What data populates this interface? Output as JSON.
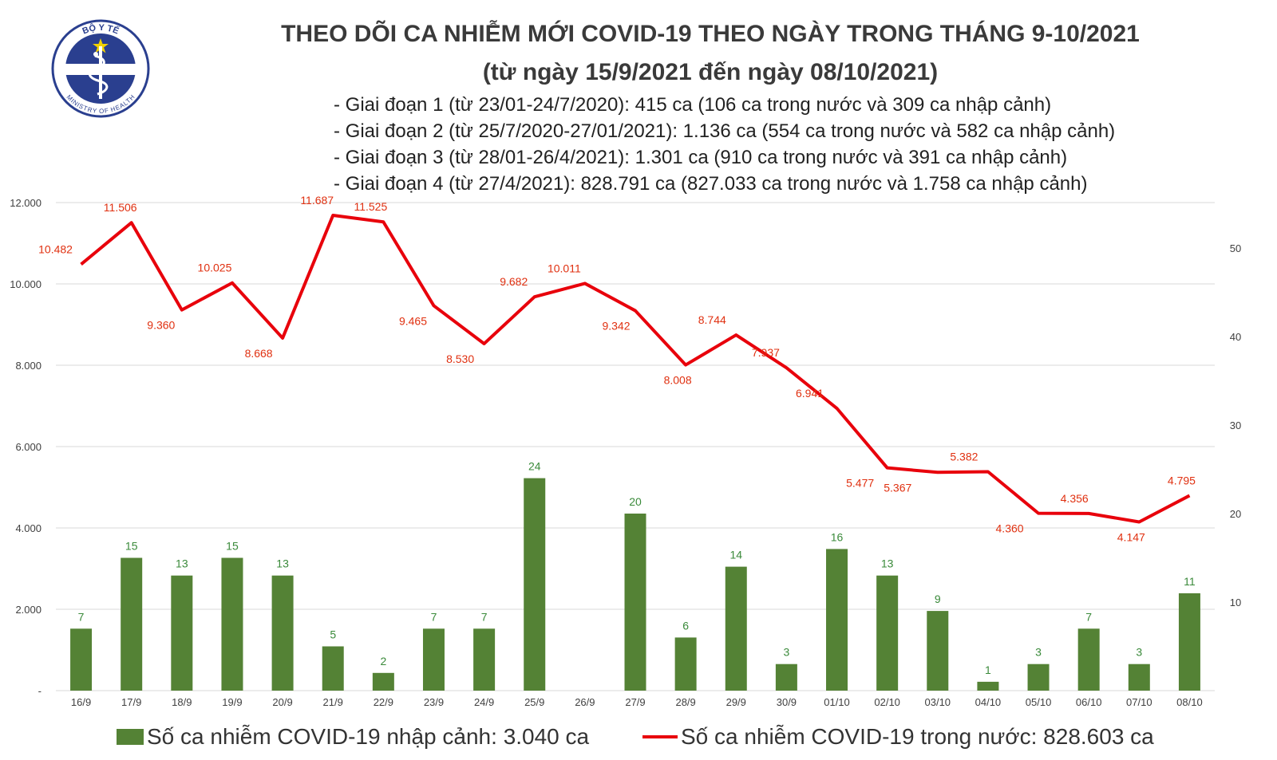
{
  "header": {
    "title": "THEO DÕI CA NHIỄM MỚI COVID-19 THEO NGÀY TRONG THÁNG 9-10/2021",
    "subtitle": "(từ ngày 15/9/2021 đến ngày 08/10/2021)",
    "notes": [
      "- Giai đoạn 1 (từ 23/01-24/7/2020): 415 ca (106 ca trong nước và 309 ca nhập cảnh)",
      "- Giai đoạn 2 (từ 25/7/2020-27/01/2021): 1.136 ca (554 ca trong nước và 582 ca nhập cảnh)",
      "- Giai đoạn 3 (từ 28/01-26/4/2021): 1.301 ca (910 ca trong nước và 391 ca nhập cảnh)",
      "- Giai đoạn 4 (từ 27/4/2021): 828.791 ca (827.033 ca trong nước và 1.758 ca nhập cảnh)"
    ]
  },
  "logo": {
    "top_text": "BỘ Y TẾ",
    "bottom_text": "MINISTRY OF HEALTH"
  },
  "colors": {
    "bar": "#548235",
    "bar_label": "#3a8a3a",
    "line": "#e8000b",
    "line_label": "#e03010",
    "grid": "#d9d9d9",
    "axis_text": "#404040"
  },
  "chart_data": {
    "type": "bar",
    "categories": [
      "16/9",
      "17/9",
      "18/9",
      "19/9",
      "20/9",
      "21/9",
      "22/9",
      "23/9",
      "24/9",
      "25/9",
      "26/9",
      "27/9",
      "28/9",
      "29/9",
      "30/9",
      "01/10",
      "02/10",
      "03/10",
      "04/10",
      "05/10",
      "06/10",
      "07/10",
      "08/10"
    ],
    "series": [
      {
        "name": "Số ca nhiễm COVID-19 nhập cảnh: 3.040 ca",
        "type": "bar",
        "axis": "right",
        "values": [
          7,
          15,
          13,
          15,
          13,
          5,
          2,
          7,
          7,
          24,
          null,
          20,
          6,
          14,
          3,
          16,
          13,
          9,
          1,
          3,
          7,
          3,
          11
        ],
        "labels": [
          "7",
          "15",
          "13",
          "15",
          "13",
          "5",
          "2",
          "7",
          "7",
          "24",
          "",
          "20",
          "6",
          "14",
          "3",
          "16",
          "13",
          "9",
          "1",
          "3",
          "7",
          "3",
          "11"
        ]
      },
      {
        "name": "Số ca nhiễm COVID-19 trong nước: 828.603 ca",
        "type": "line",
        "axis": "left",
        "values": [
          10482,
          11506,
          9360,
          10025,
          8668,
          11687,
          11525,
          9465,
          8530,
          9682,
          10011,
          9342,
          8008,
          8744,
          7937,
          6941,
          5477,
          5367,
          5382,
          4360,
          4356,
          4147,
          4795
        ],
        "labels": [
          "10.482",
          "11.506",
          "9.360",
          "10.025",
          "8.668",
          "11.687",
          "11.525",
          "9.465",
          "8.530",
          "9.682",
          "10.011",
          "9.342",
          "8.008",
          "8.744",
          "7.937",
          "6.941",
          "5.477",
          "5.367",
          "5.382",
          "4.360",
          "4.356",
          "4.147",
          "4.795"
        ]
      }
    ],
    "left_axis": {
      "ylim": [
        0,
        12000
      ],
      "ticks": [
        "-",
        "2.000",
        "4.000",
        "6.000",
        "8.000",
        "10.000",
        "12.000"
      ],
      "tick_values": [
        0,
        2000,
        4000,
        6000,
        8000,
        10000,
        12000
      ]
    },
    "right_axis": {
      "ylim": [
        0,
        55
      ],
      "ticks": [
        "10",
        "20",
        "30",
        "40",
        "50"
      ],
      "tick_values": [
        10,
        20,
        30,
        40,
        50
      ]
    },
    "grid": true,
    "legend_position": "bottom"
  }
}
